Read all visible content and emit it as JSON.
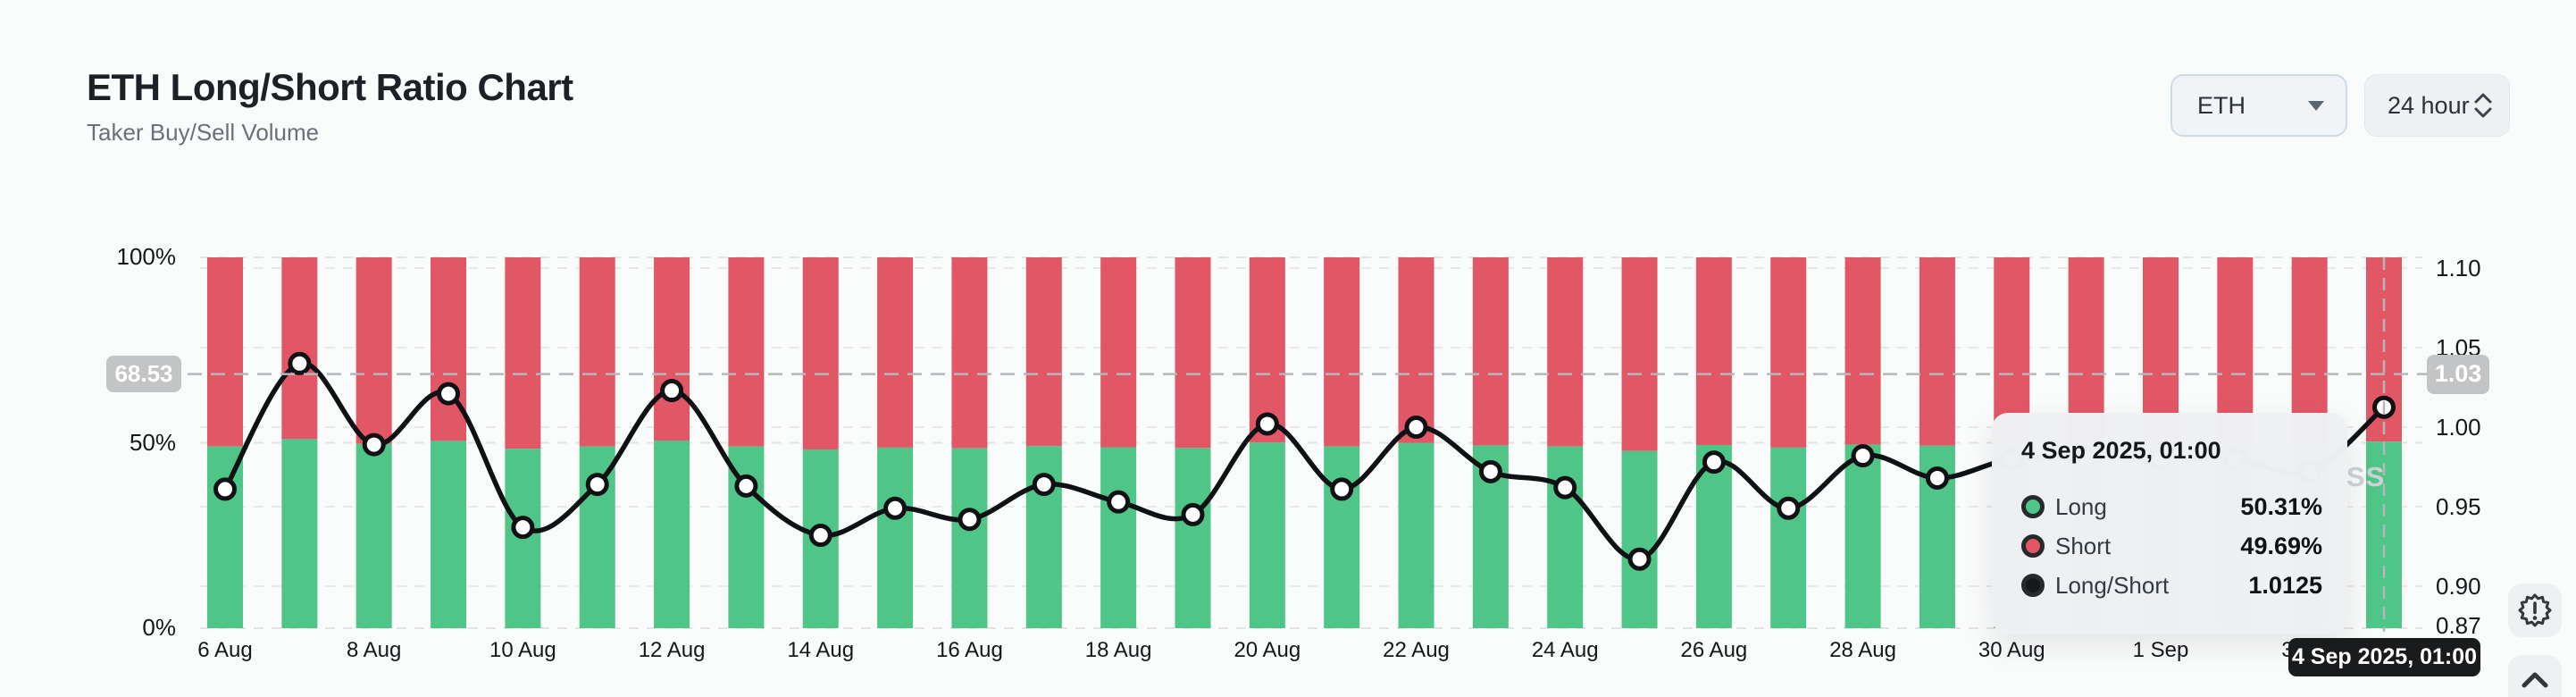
{
  "header": {
    "title": "ETH Long/Short Ratio Chart",
    "subtitle": "Taker Buy/Sell Volume"
  },
  "controls": {
    "symbol": {
      "value": "ETH"
    },
    "interval": {
      "value": "24 hour"
    }
  },
  "icons": {
    "symbol_caret": "caret-down",
    "interval_spinner": "chevrons-up-down",
    "side_top": "badge-alert",
    "side_bottom": "chevron-up"
  },
  "chart_data": {
    "type": "stacked-bar+line",
    "title": "ETH Long/Short Ratio Chart",
    "categories": [
      "6 Aug",
      "7 Aug",
      "8 Aug",
      "9 Aug",
      "10 Aug",
      "11 Aug",
      "12 Aug",
      "13 Aug",
      "14 Aug",
      "15 Aug",
      "16 Aug",
      "17 Aug",
      "18 Aug",
      "19 Aug",
      "20 Aug",
      "21 Aug",
      "22 Aug",
      "23 Aug",
      "24 Aug",
      "25 Aug",
      "26 Aug",
      "27 Aug",
      "28 Aug",
      "29 Aug",
      "30 Aug",
      "31 Aug",
      "1 Sep",
      "2 Sep",
      "3 Sep",
      "4 Sep"
    ],
    "x_tick_labels": [
      "6 Aug",
      "8 Aug",
      "10 Aug",
      "12 Aug",
      "14 Aug",
      "16 Aug",
      "18 Aug",
      "20 Aug",
      "22 Aug",
      "24 Aug",
      "26 Aug",
      "28 Aug",
      "30 Aug",
      "1 Sep",
      "3 Sep"
    ],
    "series": [
      {
        "name": "Long",
        "type": "bar",
        "unit": "%",
        "color": "#4fc688",
        "values": [
          49.0,
          51.0,
          49.7,
          50.5,
          48.4,
          49.0,
          50.6,
          49.0,
          48.2,
          48.7,
          48.5,
          49.1,
          48.8,
          48.6,
          50.1,
          49.0,
          50.0,
          49.3,
          49.0,
          47.8,
          49.4,
          48.7,
          49.5,
          49.2,
          49.5,
          49.5,
          49.5,
          49.5,
          49.3,
          50.31
        ]
      },
      {
        "name": "Short",
        "type": "bar",
        "unit": "%",
        "color": "#e25765",
        "values": [
          51.0,
          49.0,
          50.3,
          49.5,
          51.6,
          51.0,
          49.4,
          51.0,
          51.8,
          51.3,
          51.5,
          50.9,
          51.2,
          51.4,
          49.9,
          51.0,
          50.0,
          50.7,
          51.0,
          52.2,
          50.6,
          51.3,
          50.5,
          50.8,
          50.5,
          50.5,
          50.5,
          50.5,
          50.7,
          49.69
        ]
      },
      {
        "name": "Long/Short",
        "type": "line",
        "axis": "right",
        "color": "#101114",
        "values": [
          0.961,
          1.04,
          0.989,
          1.021,
          0.937,
          0.964,
          1.023,
          0.963,
          0.932,
          0.949,
          0.942,
          0.964,
          0.953,
          0.945,
          1.002,
          0.961,
          1.0,
          0.972,
          0.962,
          0.917,
          0.978,
          0.949,
          0.982,
          0.968,
          0.98,
          0.98,
          0.98,
          0.98,
          0.972,
          1.0125
        ]
      }
    ],
    "left_axis": {
      "ticks": [
        "100%",
        "50%",
        "0%"
      ],
      "tick_values": [
        100,
        50,
        0
      ],
      "min": 0,
      "max": 100
    },
    "right_axis": {
      "ticks": [
        "1.10",
        "1.05",
        "1.00",
        "0.95",
        "0.90",
        "0.87"
      ],
      "tick_values": [
        1.1,
        1.05,
        1.0,
        0.95,
        0.9,
        0.87
      ]
    },
    "grid": true,
    "legend_position": "tooltip-only",
    "colors": {
      "long": "#4fc688",
      "short": "#e25765",
      "line": "#101114"
    }
  },
  "crosshair": {
    "left_badge": "68.53",
    "right_badge": "1.03",
    "left_badge_value": 68.53,
    "day_index": 29,
    "date_label": "4 Sep 2025, 01:00"
  },
  "tooltip": {
    "title": "4 Sep 2025, 01:00",
    "rows": [
      {
        "label": "Long",
        "value": "50.31%",
        "color": "#4fc688"
      },
      {
        "label": "Short",
        "value": "49.69%",
        "color": "#e25765"
      },
      {
        "label": "Long/Short",
        "value": "1.0125",
        "color": "#17181a"
      }
    ]
  },
  "watermark": {
    "text": "SS"
  }
}
